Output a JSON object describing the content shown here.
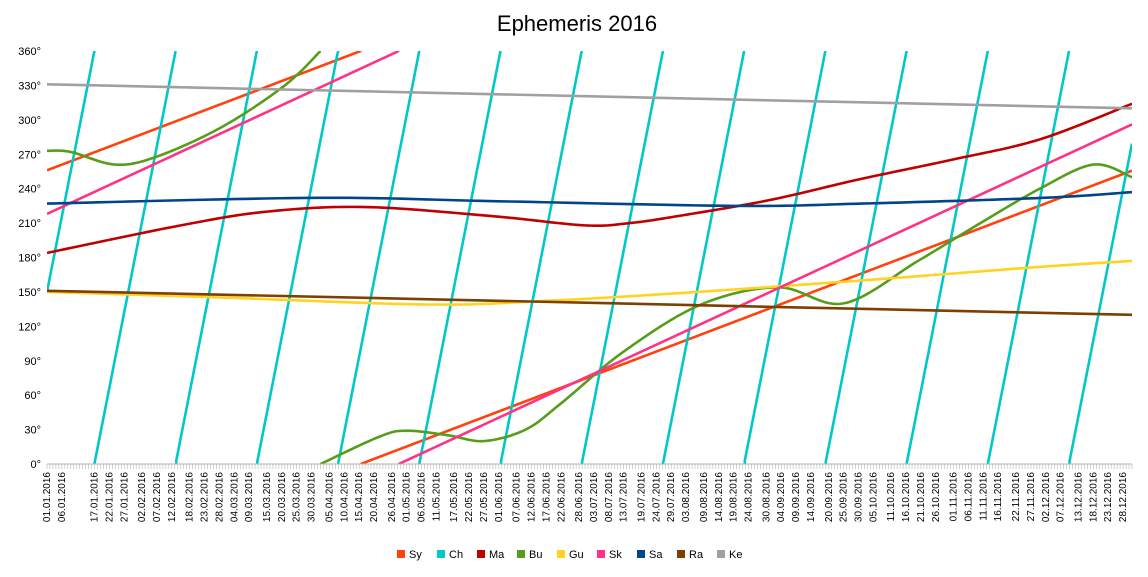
{
  "chart_data": {
    "type": "line",
    "title": "Ephemeris 2016",
    "xlabel": "",
    "ylabel": "",
    "ylim": [
      0,
      360
    ],
    "yticks": [
      "0°",
      "30°",
      "60°",
      "90°",
      "120°",
      "150°",
      "180°",
      "210°",
      "240°",
      "270°",
      "300°",
      "330°",
      "360°"
    ],
    "xticks": [
      "01.01.2016",
      "06.01.2016",
      "17.01.2016",
      "22.01.2016",
      "27.01.2016",
      "02.02.2016",
      "07.02.2016",
      "12.02.2016",
      "18.02.2016",
      "23.02.2016",
      "28.02.2016",
      "04.03.2016",
      "09.03.2016",
      "15.03.2016",
      "20.03.2016",
      "25.03.2016",
      "30.03.2016",
      "05.04.2016",
      "10.04.2016",
      "15.04.2016",
      "20.04.2016",
      "26.04.2016",
      "01.05.2016",
      "06.05.2016",
      "11.05.2016",
      "17.05.2016",
      "22.05.2016",
      "27.05.2016",
      "01.06.2016",
      "07.06.2016",
      "12.06.2016",
      "17.06.2016",
      "22.06.2016",
      "28.06.2016",
      "03.07.2016",
      "08.07.2016",
      "13.07.2016",
      "19.07.2016",
      "24.07.2016",
      "29.07.2016",
      "03.08.2016",
      "09.08.2016",
      "14.08.2016",
      "19.08.2016",
      "24.08.2016",
      "30.08.2016",
      "04.09.2016",
      "09.09.2016",
      "14.09.2016",
      "20.09.2016",
      "25.09.2016",
      "30.09.2016",
      "05.10.2016",
      "11.10.2016",
      "16.10.2016",
      "21.10.2016",
      "26.10.2016",
      "01.11.2016",
      "06.11.2016",
      "11.11.2016",
      "16.11.2016",
      "22.11.2016",
      "27.11.2016",
      "02.12.2016",
      "07.12.2016",
      "13.12.2016",
      "18.12.2016",
      "23.12.2016",
      "28.12.2016"
    ],
    "x_domain": [
      "01.01.2016",
      "31.12.2016"
    ],
    "grid": false,
    "legend_position": "bottom",
    "series": [
      {
        "name": "Sy",
        "color": "#ff420e",
        "wrap": true,
        "points": [
          [
            "01.01.2016",
            256
          ],
          [
            "31.12.2016",
            255
          ]
        ],
        "step_per_day": 0.9856
      },
      {
        "name": "Ch",
        "color": "#00c8c8",
        "wrap": true,
        "points": [
          [
            "01.01.2016",
            150
          ]
        ],
        "step_per_day": 13.176
      },
      {
        "name": "Ma",
        "color": "#c00000",
        "wrap": true,
        "points": [
          [
            "01.01.2016",
            184
          ],
          [
            "15.02.2016",
            208
          ],
          [
            "15.03.2016",
            220
          ],
          [
            "17.04.2016",
            224
          ],
          [
            "30.05.2016",
            216
          ],
          [
            "30.06.2016",
            208
          ],
          [
            "15.07.2016",
            210
          ],
          [
            "31.07.2016",
            216
          ],
          [
            "31.08.2016",
            230
          ],
          [
            "30.09.2016",
            248
          ],
          [
            "31.10.2016",
            265
          ],
          [
            "30.11.2016",
            283
          ],
          [
            "31.12.2016",
            314
          ]
        ]
      },
      {
        "name": "Bu",
        "color": "#579d1c",
        "wrap": true,
        "points": [
          [
            "01.01.2016",
            273
          ],
          [
            "09.01.2016",
            272
          ],
          [
            "24.01.2016",
            261
          ],
          [
            "07.02.2016",
            268
          ],
          [
            "29.02.2016",
            294
          ],
          [
            "21.03.2016",
            330
          ],
          [
            "02.04.2016",
            360
          ],
          [
            "02.04.2016",
            0
          ],
          [
            "22.04.2016",
            24
          ],
          [
            "01.05.2016",
            29
          ],
          [
            "15.05.2016",
            25
          ],
          [
            "27.05.2016",
            20
          ],
          [
            "10.06.2016",
            30
          ],
          [
            "22.06.2016",
            53
          ],
          [
            "13.07.2016",
            98
          ],
          [
            "08.08.2016",
            139
          ],
          [
            "03.09.2016",
            154
          ],
          [
            "25.09.2016",
            140
          ],
          [
            "20.10.2016",
            177
          ],
          [
            "10.11.2016",
            210
          ],
          [
            "30.11.2016",
            240
          ],
          [
            "18.12.2016",
            261
          ],
          [
            "31.12.2016",
            250
          ]
        ]
      },
      {
        "name": "Gu",
        "color": "#ffd320",
        "wrap": false,
        "points": [
          [
            "01.01.2016",
            150
          ],
          [
            "01.03.2016",
            145
          ],
          [
            "08.05.2016",
            139
          ],
          [
            "15.06.2016",
            142
          ],
          [
            "01.08.2016",
            149
          ],
          [
            "01.10.2016",
            160
          ],
          [
            "01.12.2016",
            172
          ],
          [
            "31.12.2016",
            177
          ]
        ]
      },
      {
        "name": "Sk",
        "color": "#ff3385",
        "wrap": true,
        "points": [
          [
            "01.01.2016",
            218
          ],
          [
            "31.12.2016",
            304
          ]
        ],
        "step_per_day": 1.2
      },
      {
        "name": "Sa",
        "color": "#004586",
        "wrap": false,
        "points": [
          [
            "01.01.2016",
            227
          ],
          [
            "01.04.2016",
            232
          ],
          [
            "01.06.2016",
            229
          ],
          [
            "20.08.2016",
            225
          ],
          [
            "01.10.2016",
            227
          ],
          [
            "01.12.2016",
            232
          ],
          [
            "31.12.2016",
            237
          ]
        ]
      },
      {
        "name": "Ra",
        "color": "#7e3f00",
        "wrap": false,
        "points": [
          [
            "01.01.2016",
            151
          ],
          [
            "31.12.2016",
            130
          ]
        ]
      },
      {
        "name": "Ke",
        "color": "#a0a0a0",
        "wrap": false,
        "points": [
          [
            "01.01.2016",
            331
          ],
          [
            "31.12.2016",
            310
          ]
        ]
      }
    ]
  }
}
